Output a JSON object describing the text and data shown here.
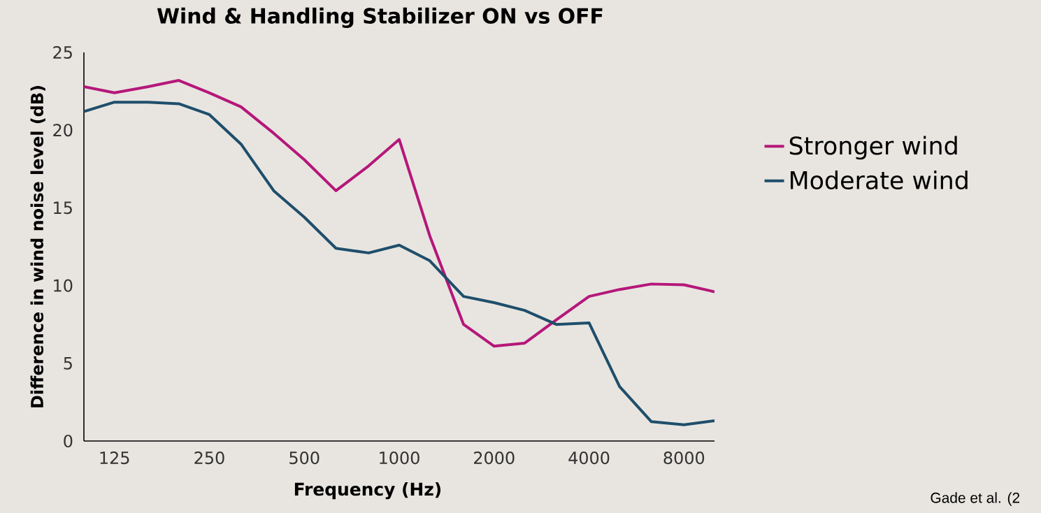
{
  "chart_data": {
    "type": "line",
    "title": "Wind & Handling Stabilizer ON vs OFF",
    "xlabel": "Frequency (Hz)",
    "ylabel": "Difference in wind noise level (dB)",
    "annotations": [
      "Gade et al. (2"
    ],
    "x": [
      100,
      125,
      160,
      200,
      250,
      315,
      400,
      500,
      630,
      800,
      1000,
      1250,
      1600,
      2000,
      2500,
      3150,
      4000,
      5000,
      6300,
      8000,
      10000
    ],
    "series": [
      {
        "name": "Stronger wind",
        "color": "#b5177a",
        "values": [
          22.8,
          22.4,
          22.8,
          23.2,
          22.4,
          21.5,
          19.8,
          18.1,
          16.1,
          17.7,
          19.4,
          13.2,
          7.5,
          6.1,
          6.3,
          7.8,
          9.3,
          9.75,
          10.1,
          10.05,
          9.6
        ]
      },
      {
        "name": "Moderate wind",
        "color": "#1f4e6b",
        "values": [
          21.2,
          21.8,
          21.8,
          21.7,
          21.0,
          19.1,
          16.1,
          14.4,
          12.4,
          12.1,
          12.6,
          11.6,
          9.3,
          8.9,
          8.4,
          7.5,
          7.6,
          3.5,
          1.25,
          1.05,
          1.3
        ]
      }
    ],
    "log": "x",
    "xlim": [
      100,
      10000
    ],
    "ylim": [
      0,
      25
    ],
    "xticks": [
      125,
      250,
      500,
      1000,
      2000,
      4000,
      8000
    ],
    "yticks": [
      0,
      5,
      10,
      15,
      20,
      25
    ],
    "legend": "right",
    "marker": "none",
    "line_style": "solid"
  }
}
